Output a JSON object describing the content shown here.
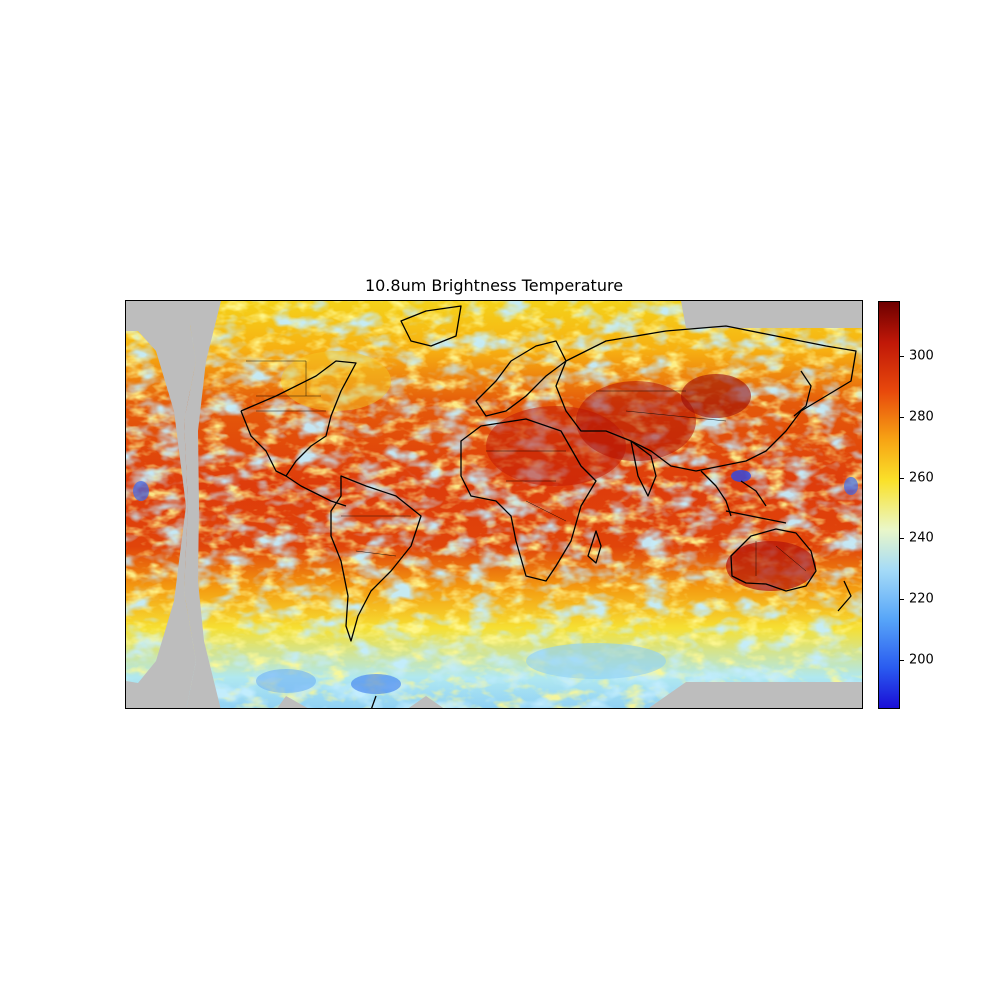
{
  "title": "10.8um Brightness Temperature",
  "colorbar": {
    "min": 184,
    "max": 318,
    "ticks": [
      {
        "value": 200,
        "label": "200"
      },
      {
        "value": 220,
        "label": "220"
      },
      {
        "value": 240,
        "label": "240"
      },
      {
        "value": 260,
        "label": "260"
      },
      {
        "value": 280,
        "label": "280"
      },
      {
        "value": 300,
        "label": "300"
      }
    ],
    "colormap": "jet-like (blue → cyan → yellow → red → dark red)"
  },
  "colors": {
    "no_data": "#bdbdbd",
    "coastline": "#000000",
    "cold": "#1a1ad8",
    "warm": "#d83a0a",
    "hot": "#7a0000"
  }
}
